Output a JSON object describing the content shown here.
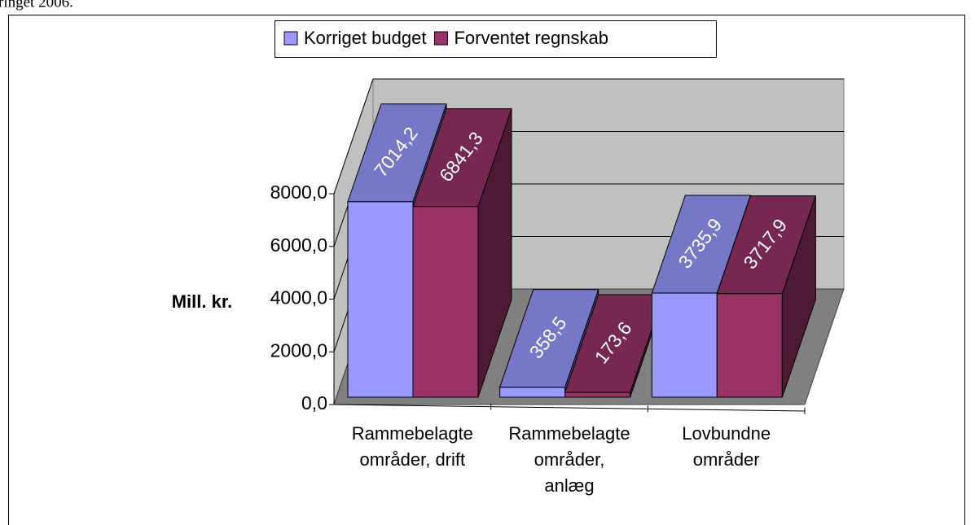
{
  "caption": "ringet 2006.",
  "chart_data": {
    "type": "bar3d",
    "y_label": "Mill. kr.",
    "categories": [
      "Rammebelagte\nområder, drift",
      "Rammebelagte\nområder,\nanlæg",
      "Lovbundne\nområder"
    ],
    "series": [
      {
        "name": "Korriget budget",
        "color": "#9999ff",
        "values": [
          7014.2,
          358.5,
          3735.9
        ],
        "value_labels": [
          "7014,2",
          "358,5",
          "3735,9"
        ]
      },
      {
        "name": "Forventet regnskab",
        "color": "#993366",
        "values": [
          6841.3,
          173.6,
          3717.9
        ],
        "value_labels": [
          "6841,3",
          "173,6",
          "3717,9"
        ]
      }
    ],
    "ylim": [
      0,
      8000
    ],
    "yticks": [
      {
        "value": 0,
        "label": "0,0"
      },
      {
        "value": 2000,
        "label": "2000,0"
      },
      {
        "value": 4000,
        "label": "4000,0"
      },
      {
        "value": 6000,
        "label": "6000,0"
      },
      {
        "value": 8000,
        "label": "8000,0"
      }
    ],
    "legend": "top",
    "grid": true
  }
}
